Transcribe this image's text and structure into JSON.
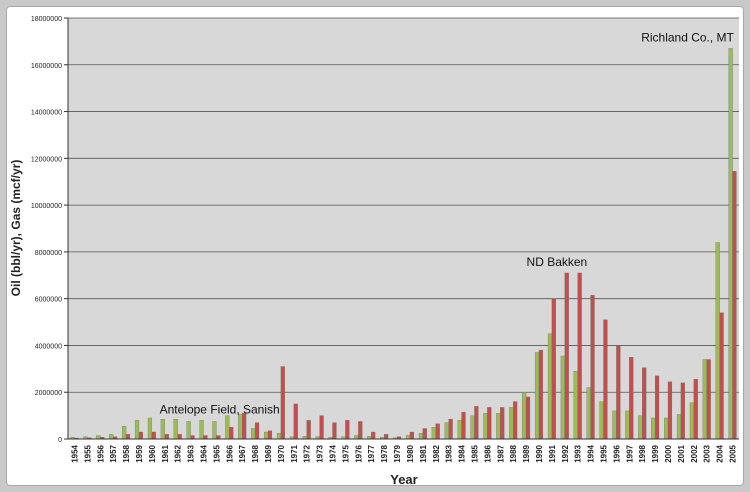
{
  "chart_data": {
    "type": "bar",
    "xlabel": "Year",
    "ylabel": "Oil (bbl/yr), Gas (mcf/yr)",
    "ylim": [
      0,
      18000000
    ],
    "yticks": [
      "0",
      "2000000",
      "4000000",
      "6000000",
      "8000000",
      "10000000",
      "12000000",
      "14000000",
      "16000000",
      "18000000"
    ],
    "grid": "horizontal",
    "legend": "none",
    "categories": [
      "1954",
      "1955",
      "1956",
      "1957",
      "1958",
      "1959",
      "1960",
      "1961",
      "1962",
      "1963",
      "1964",
      "1965",
      "1966",
      "1967",
      "1968",
      "1969",
      "1970",
      "1971",
      "1972",
      "1973",
      "1974",
      "1975",
      "1976",
      "1977",
      "1978",
      "1979",
      "1980",
      "1981",
      "1982",
      "1983",
      "1984",
      "1985",
      "1986",
      "1987",
      "1988",
      "1989",
      "1990",
      "1991",
      "1992",
      "1993",
      "1994",
      "1995",
      "1996",
      "1997",
      "1998",
      "1999",
      "2000",
      "2001",
      "2002",
      "2003",
      "2004",
      "2005"
    ],
    "series": [
      {
        "color": "#9bbb59",
        "values": [
          80000,
          100000,
          150000,
          200000,
          550000,
          800000,
          900000,
          850000,
          850000,
          750000,
          800000,
          750000,
          1000000,
          1050000,
          450000,
          300000,
          250000,
          100000,
          120000,
          100000,
          80000,
          100000,
          150000,
          120000,
          80000,
          50000,
          150000,
          250000,
          500000,
          700000,
          800000,
          1000000,
          1100000,
          1100000,
          1350000,
          2000000,
          3700000,
          4500000,
          3550000,
          2900000,
          2200000,
          1600000,
          1200000,
          1200000,
          1000000,
          900000,
          900000,
          1050000,
          1550000,
          3400000,
          8400000,
          16700000
        ]
      },
      {
        "color": "#c0504d",
        "values": [
          40000,
          50000,
          80000,
          100000,
          200000,
          300000,
          300000,
          200000,
          200000,
          150000,
          150000,
          150000,
          500000,
          1100000,
          700000,
          350000,
          3100000,
          1500000,
          800000,
          1000000,
          700000,
          800000,
          750000,
          300000,
          200000,
          100000,
          300000,
          450000,
          650000,
          850000,
          1150000,
          1400000,
          1350000,
          1350000,
          1600000,
          1800000,
          3800000,
          6000000,
          7100000,
          7100000,
          6150000,
          5100000,
          4000000,
          3500000,
          3050000,
          2700000,
          2450000,
          2400000,
          2550000,
          3400000,
          5400000,
          11450000
        ]
      }
    ],
    "annotations": [
      {
        "text": "Antelope Field, Sanish"
      },
      {
        "text": "ND Bakken"
      },
      {
        "text": "Richland Co., MT"
      }
    ]
  }
}
